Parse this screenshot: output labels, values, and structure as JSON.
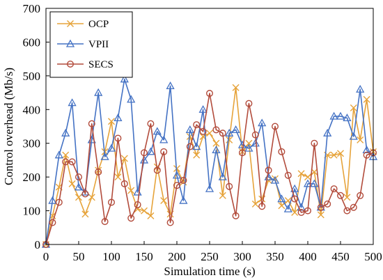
{
  "chart_data": {
    "type": "line",
    "xlabel": "Simulation time (s)",
    "ylabel": "Control overhead (Mb/s)",
    "xlim": [
      0,
      500
    ],
    "ylim": [
      0,
      700
    ],
    "xticks": [
      0,
      50,
      100,
      150,
      200,
      250,
      300,
      350,
      400,
      450,
      500
    ],
    "yticks": [
      0,
      100,
      200,
      300,
      400,
      500,
      600,
      700
    ],
    "grid": false,
    "legend_position": "top-left",
    "series": [
      {
        "name": "OCP",
        "color": "#E6A33A",
        "marker": "x",
        "x": [
          0,
          10,
          20,
          30,
          40,
          50,
          60,
          70,
          80,
          90,
          100,
          110,
          120,
          130,
          140,
          150,
          160,
          170,
          180,
          190,
          200,
          210,
          220,
          230,
          240,
          250,
          260,
          270,
          280,
          290,
          300,
          310,
          320,
          330,
          340,
          350,
          360,
          370,
          380,
          390,
          400,
          410,
          420,
          430,
          440,
          450,
          460,
          470,
          480,
          490,
          500
        ],
        "y": [
          0,
          85,
          170,
          265,
          180,
          140,
          90,
          140,
          220,
          275,
          365,
          200,
          255,
          160,
          105,
          100,
          85,
          230,
          130,
          90,
          225,
          185,
          320,
          265,
          320,
          330,
          300,
          145,
          310,
          465,
          275,
          300,
          120,
          135,
          190,
          195,
          115,
          130,
          95,
          210,
          200,
          215,
          88,
          265,
          265,
          270,
          140,
          405,
          310,
          430,
          275
        ]
      },
      {
        "name": "VPII",
        "color": "#4472C4",
        "marker": "triangle",
        "x": [
          0,
          10,
          20,
          30,
          40,
          50,
          60,
          70,
          80,
          90,
          100,
          110,
          120,
          130,
          140,
          150,
          160,
          170,
          180,
          190,
          200,
          210,
          220,
          230,
          240,
          250,
          260,
          270,
          280,
          290,
          300,
          310,
          320,
          330,
          340,
          350,
          360,
          370,
          380,
          390,
          400,
          410,
          420,
          430,
          440,
          450,
          460,
          470,
          480,
          490,
          500
        ],
        "y": [
          0,
          130,
          265,
          330,
          420,
          170,
          155,
          310,
          450,
          260,
          285,
          375,
          490,
          430,
          155,
          250,
          275,
          335,
          310,
          470,
          205,
          130,
          340,
          290,
          400,
          165,
          280,
          200,
          330,
          340,
          295,
          285,
          300,
          360,
          200,
          190,
          135,
          105,
          165,
          110,
          180,
          180,
          110,
          330,
          380,
          380,
          375,
          320,
          460,
          280,
          260
        ]
      },
      {
        "name": "SECS",
        "color": "#B24B3B",
        "marker": "circle",
        "x": [
          0,
          10,
          20,
          30,
          40,
          50,
          60,
          70,
          80,
          90,
          100,
          110,
          120,
          130,
          140,
          150,
          160,
          170,
          180,
          190,
          200,
          210,
          220,
          230,
          240,
          250,
          260,
          270,
          280,
          290,
          300,
          310,
          320,
          330,
          340,
          350,
          360,
          370,
          380,
          390,
          400,
          410,
          420,
          430,
          440,
          450,
          460,
          470,
          480,
          490,
          500
        ],
        "y": [
          0,
          65,
          125,
          245,
          245,
          200,
          150,
          358,
          215,
          68,
          125,
          315,
          180,
          78,
          118,
          272,
          358,
          220,
          275,
          65,
          175,
          190,
          290,
          355,
          335,
          448,
          340,
          330,
          172,
          85,
          272,
          418,
          325,
          113,
          220,
          350,
          275,
          205,
          135,
          95,
          100,
          300,
          110,
          120,
          165,
          145,
          100,
          110,
          145,
          265,
          272
        ]
      }
    ]
  }
}
